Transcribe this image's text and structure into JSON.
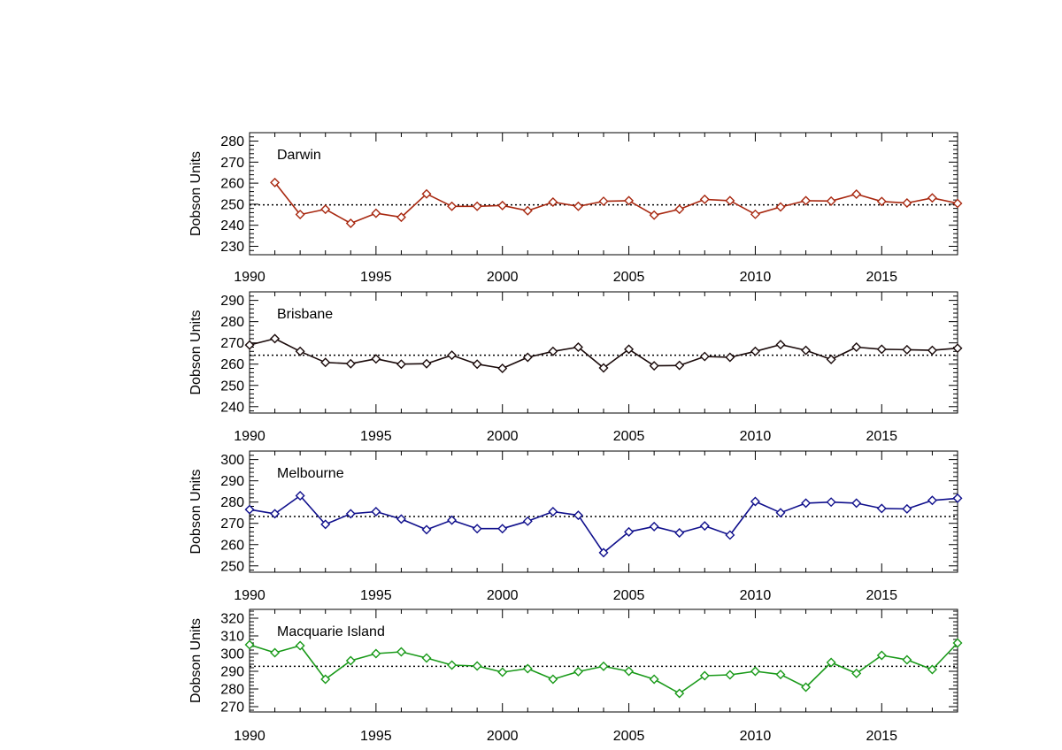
{
  "chart_data": [
    {
      "type": "line",
      "station": "Darwin",
      "ylabel": "Dobson Units",
      "xlim": [
        1990,
        2018
      ],
      "ylim": [
        226,
        284
      ],
      "xticks": [
        1990,
        1995,
        2000,
        2005,
        2010,
        2015
      ],
      "yticks": [
        230,
        240,
        250,
        260,
        270,
        280
      ],
      "mean": 249.7,
      "color": "#a82810",
      "x": [
        1991,
        1992,
        1993,
        1994,
        1995,
        1996,
        1997,
        1998,
        1999,
        2000,
        2001,
        2002,
        2003,
        2004,
        2005,
        2006,
        2007,
        2008,
        2009,
        2010,
        2011,
        2012,
        2013,
        2014,
        2015,
        2016,
        2017,
        2018
      ],
      "y": [
        260.3,
        245.1,
        247.6,
        240.9,
        245.7,
        243.8,
        254.9,
        249.0,
        249.0,
        249.4,
        246.9,
        251.0,
        249.0,
        251.4,
        251.7,
        244.8,
        247.6,
        252.3,
        251.7,
        245.2,
        248.7,
        251.7,
        251.5,
        254.8,
        251.3,
        250.6,
        253.0,
        250.4
      ]
    },
    {
      "type": "line",
      "station": "Brisbane",
      "ylabel": "Dobson Units",
      "xlim": [
        1990,
        2018
      ],
      "ylim": [
        237,
        294
      ],
      "xticks": [
        1990,
        1995,
        2000,
        2005,
        2010,
        2015
      ],
      "yticks": [
        240,
        250,
        260,
        270,
        280,
        290
      ],
      "mean": 264.2,
      "color": "#1a0a0a",
      "x": [
        1990,
        1991,
        1992,
        1993,
        1994,
        1995,
        1996,
        1997,
        1998,
        1999,
        2000,
        2001,
        2002,
        2003,
        2004,
        2005,
        2006,
        2007,
        2008,
        2009,
        2010,
        2011,
        2012,
        2013,
        2014,
        2015,
        2016,
        2017,
        2018
      ],
      "y": [
        269.0,
        272.0,
        266.0,
        260.8,
        260.2,
        262.5,
        260.0,
        260.2,
        264.2,
        260.0,
        258.0,
        263.2,
        266.0,
        268.0,
        258.2,
        267.0,
        259.2,
        259.4,
        263.6,
        263.2,
        266.0,
        269.2,
        266.5,
        262.2,
        268.0,
        267.0,
        266.8,
        266.5,
        267.5
      ]
    },
    {
      "type": "line",
      "station": "Melbourne",
      "ylabel": "Dobson Units",
      "xlim": [
        1990,
        2018
      ],
      "ylim": [
        247,
        304
      ],
      "xticks": [
        1990,
        1995,
        2000,
        2005,
        2010,
        2015
      ],
      "yticks": [
        250,
        260,
        270,
        280,
        290,
        300
      ],
      "mean": 273.2,
      "color": "#0f0f8c",
      "x": [
        1990,
        1991,
        1992,
        1993,
        1994,
        1995,
        1996,
        1997,
        1998,
        1999,
        2000,
        2001,
        2002,
        2003,
        2004,
        2005,
        2006,
        2007,
        2008,
        2009,
        2010,
        2011,
        2012,
        2013,
        2014,
        2015,
        2016,
        2017,
        2018
      ],
      "y": [
        276.5,
        274.5,
        283.0,
        269.5,
        274.5,
        275.5,
        272.0,
        267.0,
        271.5,
        267.5,
        267.5,
        271.0,
        275.5,
        273.8,
        256.2,
        266.0,
        268.5,
        265.5,
        268.8,
        264.5,
        280.3,
        275.0,
        279.5,
        280.0,
        279.5,
        277.0,
        276.8,
        280.8,
        281.8
      ]
    },
    {
      "type": "line",
      "station": "Macquarie Island",
      "ylabel": "Dobson Units",
      "xlim": [
        1990,
        2018
      ],
      "ylim": [
        267,
        325
      ],
      "xticks": [
        1990,
        1995,
        2000,
        2005,
        2010,
        2015
      ],
      "yticks": [
        270,
        280,
        290,
        300,
        310,
        320
      ],
      "mean": 292.8,
      "color": "#1a9a1a",
      "x": [
        1990,
        1991,
        1992,
        1993,
        1994,
        1995,
        1996,
        1997,
        1998,
        1999,
        2000,
        2001,
        2002,
        2003,
        2004,
        2005,
        2006,
        2007,
        2008,
        2009,
        2010,
        2011,
        2012,
        2013,
        2014,
        2015,
        2016,
        2017,
        2018
      ],
      "y": [
        305.0,
        300.5,
        304.5,
        285.5,
        296.0,
        300.0,
        301.0,
        297.5,
        293.5,
        293.0,
        289.5,
        291.5,
        285.5,
        289.8,
        292.8,
        290.0,
        285.5,
        277.5,
        287.5,
        288.0,
        290.0,
        288.2,
        281.0,
        295.0,
        288.8,
        299.0,
        296.5,
        291.0,
        306.0
      ]
    }
  ]
}
